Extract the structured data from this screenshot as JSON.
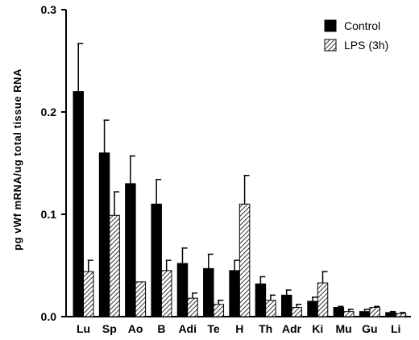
{
  "chart_data": {
    "type": "bar",
    "title": "",
    "xlabel": "",
    "ylabel": "pg vWf mRNA/ug total tissue RNA",
    "ylim": [
      0,
      0.3
    ],
    "yticks": [
      "0.0",
      "0.1",
      "0.2",
      "0.3"
    ],
    "grid": false,
    "legend_position": "top-right",
    "categories": [
      "Lu",
      "Sp",
      "Ao",
      "B",
      "Adi",
      "Te",
      "H",
      "Th",
      "Adr",
      "Ki",
      "Mu",
      "Gu",
      "Li"
    ],
    "series": [
      {
        "name": "Control",
        "fill": "solid",
        "color": "#000000",
        "values": [
          0.22,
          0.16,
          0.13,
          0.11,
          0.052,
          0.047,
          0.045,
          0.032,
          0.021,
          0.015,
          0.009,
          0.005,
          0.004
        ],
        "errors": [
          0.047,
          0.032,
          0.027,
          0.024,
          0.015,
          0.014,
          0.01,
          0.007,
          0.005,
          0.004,
          0.001,
          0.002,
          0.001
        ]
      },
      {
        "name": "LPS (3h)",
        "fill": "hatched",
        "color": "#000000",
        "values": [
          0.044,
          0.099,
          0.034,
          0.045,
          0.018,
          0.012,
          0.11,
          0.016,
          0.009,
          0.033,
          0.005,
          0.009,
          0.003
        ],
        "errors": [
          0.011,
          0.023,
          0.0,
          0.01,
          0.005,
          0.004,
          0.028,
          0.005,
          0.003,
          0.011,
          0.002,
          0.001,
          0.001
        ]
      }
    ]
  }
}
